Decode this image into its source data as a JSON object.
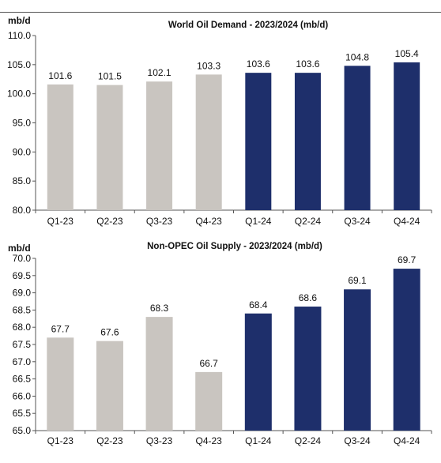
{
  "chart_data": [
    {
      "type": "bar",
      "title": "World Oil Demand - 2023/2024 (mb/d)",
      "ylabel": "mb/d",
      "categories": [
        "Q1-23",
        "Q2-23",
        "Q3-23",
        "Q4-23",
        "Q1-24",
        "Q2-24",
        "Q3-24",
        "Q4-24"
      ],
      "values": [
        101.6,
        101.5,
        102.1,
        103.3,
        103.6,
        103.6,
        104.8,
        105.4
      ],
      "value_labels": [
        "101.6",
        "101.5",
        "102.1",
        "103.3",
        "103.6",
        "103.6",
        "104.8",
        "105.4"
      ],
      "ylim": [
        80,
        110
      ],
      "yticks": [
        "110.0",
        "105.0",
        "100.0",
        "95.0",
        "90.0",
        "85.0",
        "80.0"
      ],
      "bar_colors": [
        "#c9c5c0",
        "#c9c5c0",
        "#c9c5c0",
        "#c9c5c0",
        "#1e2f6b",
        "#1e2f6b",
        "#1e2f6b",
        "#1e2f6b"
      ],
      "grid": false
    },
    {
      "type": "bar",
      "title": "Non-OPEC  Oil Supply - 2023/2024 (mb/d)",
      "ylabel": "mb/d",
      "categories": [
        "Q1-23",
        "Q2-23",
        "Q3-23",
        "Q4-23",
        "Q1-24",
        "Q2-24",
        "Q3-24",
        "Q4-24"
      ],
      "values": [
        67.7,
        67.6,
        68.3,
        66.7,
        68.4,
        68.6,
        69.1,
        69.7
      ],
      "value_labels": [
        "67.7",
        "67.6",
        "68.3",
        "66.7",
        "68.4",
        "68.6",
        "69.1",
        "69.7"
      ],
      "ylim": [
        65,
        70
      ],
      "yticks": [
        "70.0",
        "69.5",
        "69.0",
        "68.5",
        "68.0",
        "67.5",
        "67.0",
        "66.5",
        "66.0",
        "65.5",
        "65.0"
      ],
      "bar_colors": [
        "#c9c5c0",
        "#c9c5c0",
        "#c9c5c0",
        "#c9c5c0",
        "#1e2f6b",
        "#1e2f6b",
        "#1e2f6b",
        "#1e2f6b"
      ],
      "grid": false
    }
  ]
}
